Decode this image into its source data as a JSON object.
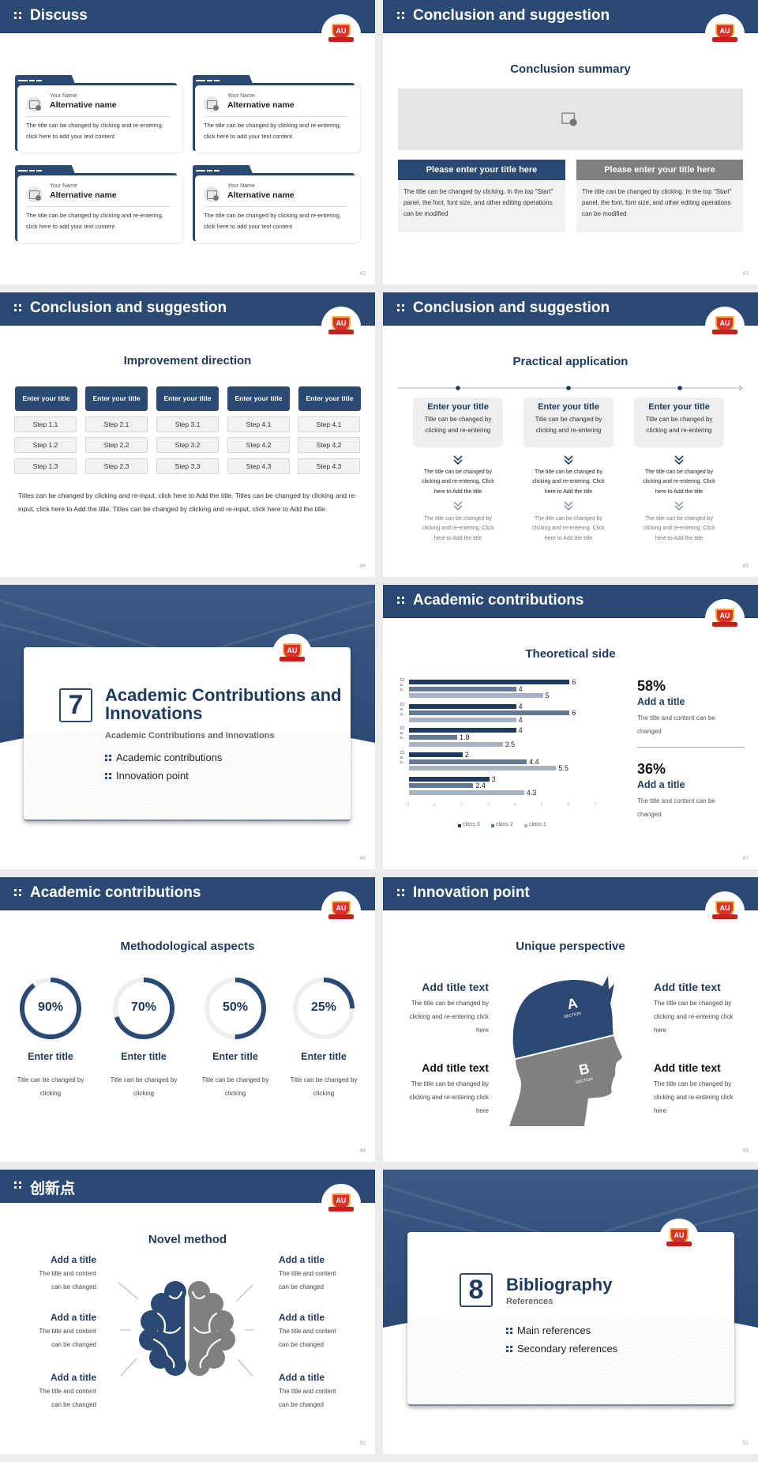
{
  "theme": {
    "navy": "#2a4a73",
    "title_navy": "#1f3a5f",
    "gray_box": "#7f7f7f",
    "light_gray": "#f2f2f2",
    "logo_red": "#d9332b"
  },
  "logo_text": "AU",
  "slides": [
    {
      "page": "42",
      "header": "Discuss",
      "cards": [
        {
          "label": "Your Name",
          "name": "Alternative name",
          "text": "The title can be changed by clicking and re-entering, click here to add your text content"
        },
        {
          "label": "Your Name",
          "name": "Alternative name",
          "text": "The title can be changed by clicking and re-entering, click here to add your text content"
        },
        {
          "label": "Your Name",
          "name": "Alternative name",
          "text": "The title can be changed by clicking and re-entering, click here to add your text content"
        },
        {
          "label": "Your Name",
          "name": "Alternative name",
          "text": "The title can be changed by clicking and re-entering, click here to add your text content"
        }
      ]
    },
    {
      "page": "43",
      "header": "Conclusion and suggestion",
      "subtitle": "Conclusion summary",
      "boxes": [
        {
          "title": "Please enter your title here",
          "text": "The title can be changed by clicking. In the top \"Start\" panel, the font, font size, and other editing operations can be modified"
        },
        {
          "title": "Please enter your title here",
          "text": "The title can be changed by clicking. In the top \"Start\" panel, the font, font size, and other editing operations can be modified"
        }
      ]
    },
    {
      "page": "44",
      "header": "Conclusion and suggestion",
      "subtitle": "Improvement direction",
      "columns": [
        {
          "title": "Enter your title",
          "steps": [
            "Step 1.1",
            "Step 1.2",
            "Step 1.3"
          ]
        },
        {
          "title": "Enter your title",
          "steps": [
            "Step 2.1",
            "Step 2.2",
            "Step 2.3"
          ]
        },
        {
          "title": "Enter your title",
          "steps": [
            "Step 3.1",
            "Step 3.2",
            "Step 3.3"
          ]
        },
        {
          "title": "Enter your title",
          "steps": [
            "Step 4.1",
            "Step 4.2",
            "Step 4.3"
          ]
        },
        {
          "title": "Enter your title",
          "steps": [
            "Step 4.1",
            "Step 4.2",
            "Step 4.3"
          ]
        }
      ],
      "paragraph": "Titles can be changed by clicking and re-input, click here to Add the title. Titles can be changed by clicking and re-input, click here to Add the title. Titles can be changed by clicking and re-input, click here to Add the title."
    },
    {
      "page": "45",
      "header": "Conclusion and suggestion",
      "subtitle": "Practical application",
      "items": [
        {
          "title": "Enter your title",
          "text": "Title can be changed by clicking and re-entering",
          "note1": "The title can be changed by clicking and re-entering. Click here to Add the title",
          "note2": "The title can be changed by clicking and re-entering. Click here to Add the title"
        },
        {
          "title": "Enter your title",
          "text": "Title can be changed by clicking and re-entering",
          "note1": "The title can be changed by clicking and re-entering. Click here to Add the title",
          "note2": "The title can be changed by clicking and re-entering. Click here to Add the title"
        },
        {
          "title": "Enter your title",
          "text": "Title can be changed by clicking and re-entering",
          "note1": "The title can be changed by clicking and re-entering. Click here to Add the title",
          "note2": "The title can be changed by clicking and re-entering. Click here to Add the title"
        }
      ]
    },
    {
      "page": "46",
      "number": "7",
      "title": "Academic Contributions and Innovations",
      "subtitle": "Academic Contributions and Innovations",
      "bullets": [
        "Academic contributions",
        "Innovation point"
      ]
    },
    {
      "page": "47",
      "header": "Academic contributions",
      "subtitle": "Theoretical side",
      "stats": [
        {
          "value": "58%",
          "title": "Add a title",
          "text": "The title and content can be changed"
        },
        {
          "value": "36%",
          "title": "Add a title",
          "text": "The title and content can be changed"
        }
      ]
    },
    {
      "page": "48",
      "header": "Academic contributions",
      "subtitle": "Methodological aspects",
      "rings": [
        {
          "value": "90%",
          "percent": 90,
          "title": "Enter title",
          "text": "Title can be changed by clicking"
        },
        {
          "value": "70%",
          "percent": 70,
          "title": "Enter title",
          "text": "Title can be changed by clicking"
        },
        {
          "value": "50%",
          "percent": 50,
          "title": "Enter title",
          "text": "Title can be changed by clicking"
        },
        {
          "value": "25%",
          "percent": 25,
          "title": "Enter title",
          "text": "Title can be changed by clicking"
        }
      ]
    },
    {
      "page": "49",
      "header": "Innovation point",
      "subtitle": "Unique perspective",
      "head": {
        "a": "A",
        "b": "B",
        "section": "SECTION"
      },
      "items": [
        {
          "title": "Add title text",
          "text": "The title can be changed by clicking and re-entering click here"
        },
        {
          "title": "Add title text",
          "text": "The title can be changed by clicking and re-entering click here"
        },
        {
          "title": "Add title text",
          "text": "The title can be changed by clicking and re-entering click here"
        },
        {
          "title": "Add title text",
          "text": "The title can be changed by clicking and re-entering click here"
        }
      ]
    },
    {
      "page": "50",
      "header": "创新点",
      "subtitle": "Novel method",
      "items": [
        {
          "title": "Add a title",
          "text": "The title and content can be changed"
        },
        {
          "title": "Add a title",
          "text": "The title and content can be changed"
        },
        {
          "title": "Add a title",
          "text": "The title and content can be changed"
        },
        {
          "title": "Add a title",
          "text": "The title and content can be changed"
        },
        {
          "title": "Add a title",
          "text": "The title and content can be changed"
        },
        {
          "title": "Add a title",
          "text": "The title and content can be changed"
        }
      ]
    },
    {
      "page": "51",
      "number": "8",
      "title": "Bibliography",
      "subtitle": "References",
      "bullets": [
        "Main references",
        "Secondary references"
      ]
    }
  ],
  "chart_data": {
    "type": "bar",
    "orientation": "horizontal",
    "categories": [
      "Clas...",
      "Clas...",
      "Clas...",
      "Clas...",
      ""
    ],
    "series": [
      {
        "name": "class 3",
        "color": "#1f3a5f",
        "values": [
          6,
          4,
          4,
          2,
          3
        ]
      },
      {
        "name": "class 2",
        "color": "#637894",
        "values": [
          4,
          6,
          1.8,
          4.4,
          2.4
        ]
      },
      {
        "name": "class 1",
        "color": "#a7b2c2",
        "values": [
          5,
          4,
          3.5,
          5.5,
          4.3
        ]
      }
    ],
    "xlim": [
      0,
      7
    ],
    "xticks": [
      "0",
      "1",
      "2",
      "3",
      "4",
      "5",
      "6",
      "7"
    ],
    "legend": "bottom",
    "grid": false,
    "data_labels": true
  }
}
